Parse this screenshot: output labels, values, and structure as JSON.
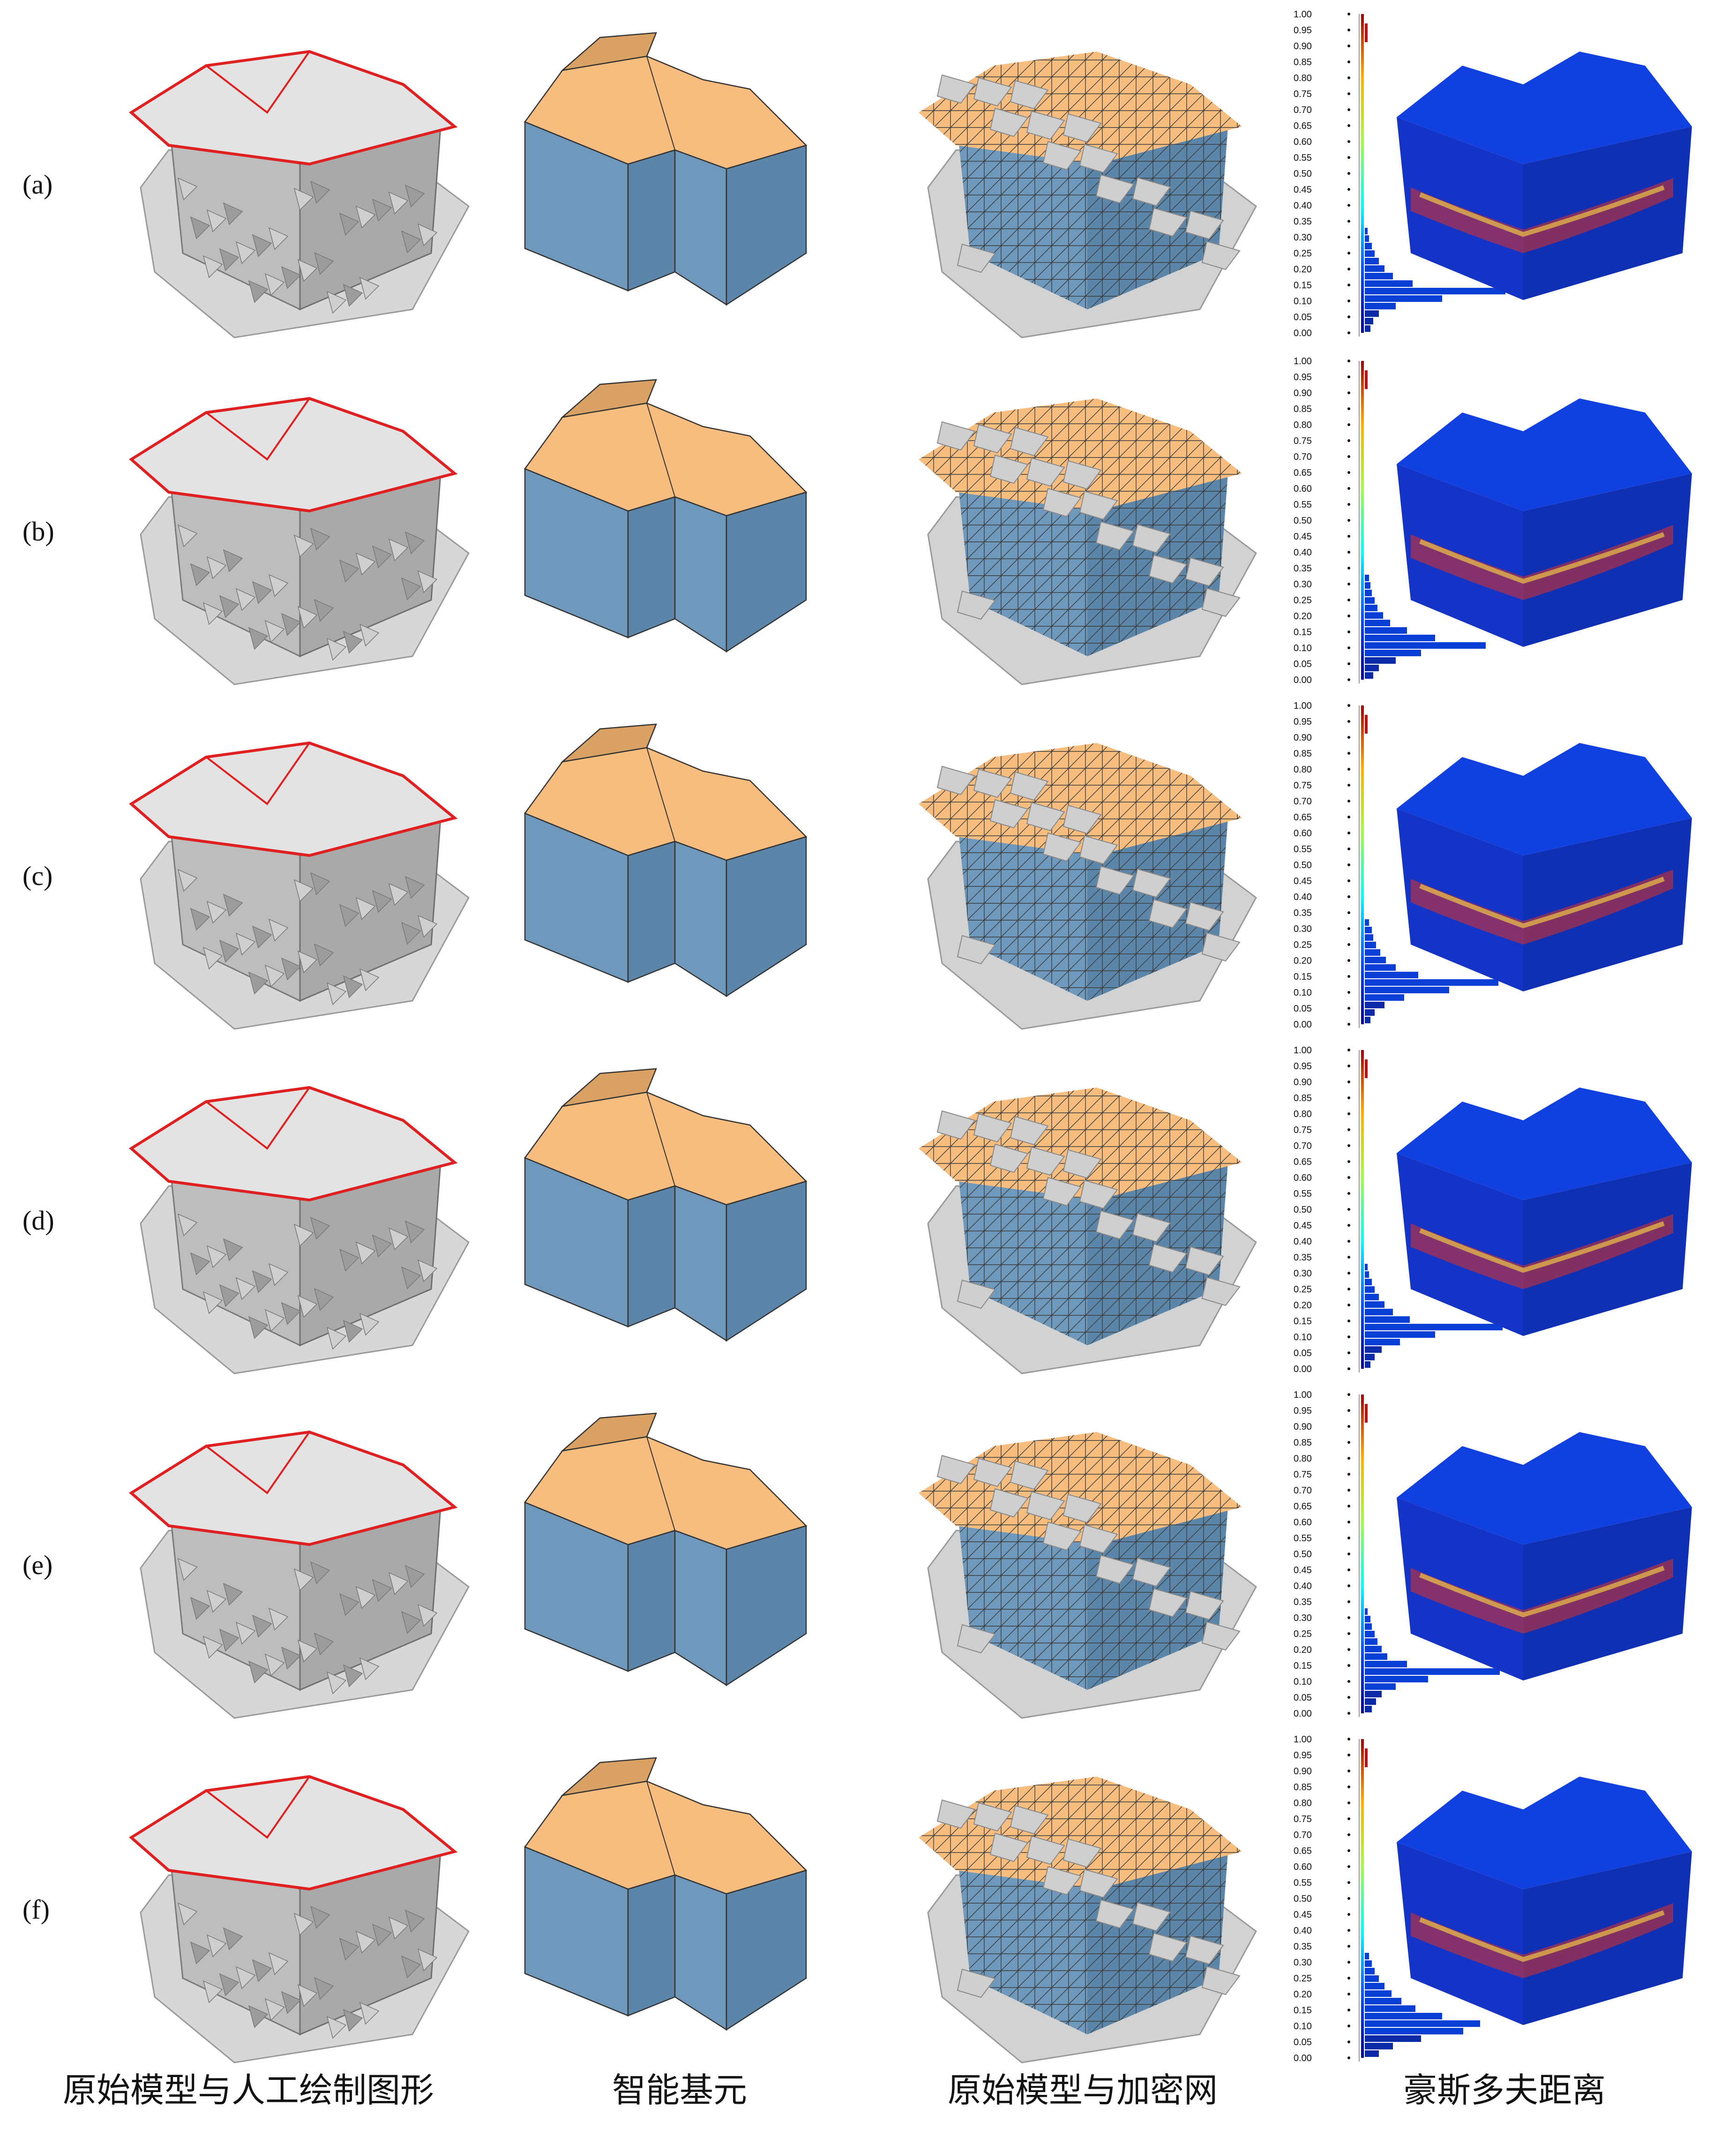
{
  "rows": [
    {
      "label": "(a)",
      "hist": [
        0.02,
        0.03,
        0.05,
        0.07,
        0.1,
        0.14,
        0.2,
        0.34,
        1.0,
        0.55,
        0.22,
        0.1,
        0.06,
        0.04
      ]
    },
    {
      "label": "(b)",
      "hist": [
        0.03,
        0.04,
        0.05,
        0.07,
        0.09,
        0.13,
        0.18,
        0.3,
        0.5,
        0.86,
        0.4,
        0.22,
        0.1,
        0.06
      ]
    },
    {
      "label": "(c)",
      "hist": [
        0.03,
        0.05,
        0.06,
        0.08,
        0.11,
        0.15,
        0.22,
        0.38,
        0.95,
        0.6,
        0.28,
        0.14,
        0.07,
        0.04
      ]
    },
    {
      "label": "(d)",
      "hist": [
        0.02,
        0.03,
        0.05,
        0.07,
        0.1,
        0.14,
        0.2,
        0.32,
        0.98,
        0.5,
        0.25,
        0.12,
        0.07,
        0.04
      ]
    },
    {
      "label": "(e)",
      "hist": [
        0.02,
        0.04,
        0.05,
        0.07,
        0.09,
        0.12,
        0.16,
        0.3,
        0.96,
        0.45,
        0.22,
        0.12,
        0.08,
        0.05
      ]
    },
    {
      "label": "(f)",
      "hist": [
        0.03,
        0.05,
        0.07,
        0.1,
        0.14,
        0.19,
        0.26,
        0.36,
        0.55,
        0.82,
        0.7,
        0.4,
        0.2,
        0.1
      ]
    }
  ],
  "axis_ticks": [
    "1.00",
    "0.95",
    "0.90",
    "0.85",
    "0.80",
    "0.75",
    "0.70",
    "0.65",
    "0.60",
    "0.55",
    "0.50",
    "0.45",
    "0.40",
    "0.35",
    "0.30",
    "0.25",
    "0.20",
    "0.15",
    "0.10",
    "0.05",
    "0.00"
  ],
  "captions": {
    "col1": "原始模型与人工绘制图形",
    "col2": "智能基元",
    "col3": "原始模型与加密网",
    "col4": "豪斯多夫距离"
  },
  "colors": {
    "roof": "#f6bd7e",
    "roof_dark": "#d9a164",
    "wall": "#6f98bd",
    "wall_dark": "#5c85aa",
    "mesh_gray": "#c8c8c8",
    "mesh_dark": "#8a8a8a",
    "outline_red": "#e02020",
    "heat_blue": "#1030c8"
  }
}
